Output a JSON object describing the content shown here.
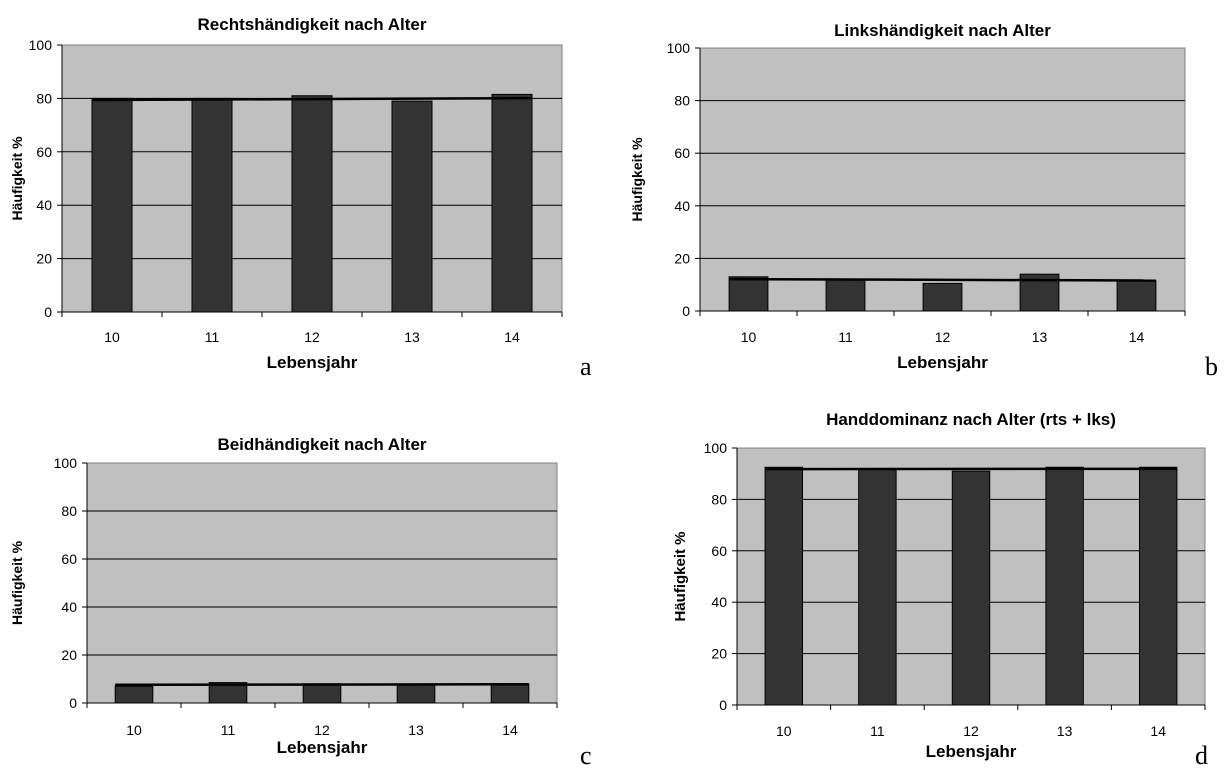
{
  "chart_data": [
    {
      "panel": "a",
      "type": "bar",
      "title": "Rechtshändigkeit nach Alter",
      "xlabel": "Lebensjahr",
      "ylabel": "Häufigkeit %",
      "categories": [
        "10",
        "11",
        "12",
        "13",
        "14"
      ],
      "values": [
        80,
        80,
        81,
        79,
        81.5
      ],
      "trend": [
        79.4,
        80.1
      ],
      "ylim": [
        0,
        100
      ],
      "yticks": [
        "0",
        "20",
        "40",
        "60",
        "80",
        "100"
      ],
      "grid": true,
      "legend": "none",
      "colors": {
        "plot_bg": "#c0c0c0",
        "bar": "#333333",
        "line": "#000000"
      }
    },
    {
      "panel": "b",
      "type": "bar",
      "title": "Linkshändigkeit nach Alter",
      "xlabel": "Lebensjahr",
      "ylabel": "Häufigkeit %",
      "categories": [
        "10",
        "11",
        "12",
        "13",
        "14"
      ],
      "values": [
        13,
        12,
        10.5,
        14,
        11.5
      ],
      "trend": [
        12.1,
        11.6
      ],
      "ylim": [
        0,
        100
      ],
      "yticks": [
        "0",
        "20",
        "40",
        "60",
        "80",
        "100"
      ],
      "grid": true,
      "legend": "none",
      "colors": {
        "plot_bg": "#c0c0c0",
        "bar": "#333333",
        "line": "#000000"
      }
    },
    {
      "panel": "c",
      "type": "bar",
      "title": "Beidhändigkeit nach Alter",
      "xlabel": "Lebensjahr",
      "ylabel": "Häufigkeit %",
      "categories": [
        "10",
        "11",
        "12",
        "13",
        "14"
      ],
      "values": [
        7,
        8.5,
        8,
        7.5,
        8
      ],
      "trend": [
        7.6,
        7.8
      ],
      "ylim": [
        0,
        100
      ],
      "yticks": [
        "0",
        "20",
        "40",
        "60",
        "80",
        "100"
      ],
      "grid": true,
      "legend": "none",
      "colors": {
        "plot_bg": "#c0c0c0",
        "bar": "#333333",
        "line": "#000000"
      }
    },
    {
      "panel": "d",
      "type": "bar",
      "title": "Handdominanz nach Alter (rts + lks)",
      "xlabel": "Lebensjahr",
      "ylabel": "Häufigkeit %",
      "categories": [
        "10",
        "11",
        "12",
        "13",
        "14"
      ],
      "values": [
        92.5,
        92,
        91,
        92.5,
        92.5
      ],
      "trend": [
        91.8,
        91.9
      ],
      "ylim": [
        0,
        100
      ],
      "yticks": [
        "0",
        "20",
        "40",
        "60",
        "80",
        "100"
      ],
      "grid": true,
      "legend": "none",
      "colors": {
        "plot_bg": "#c0c0c0",
        "bar": "#333333",
        "line": "#000000"
      }
    }
  ]
}
